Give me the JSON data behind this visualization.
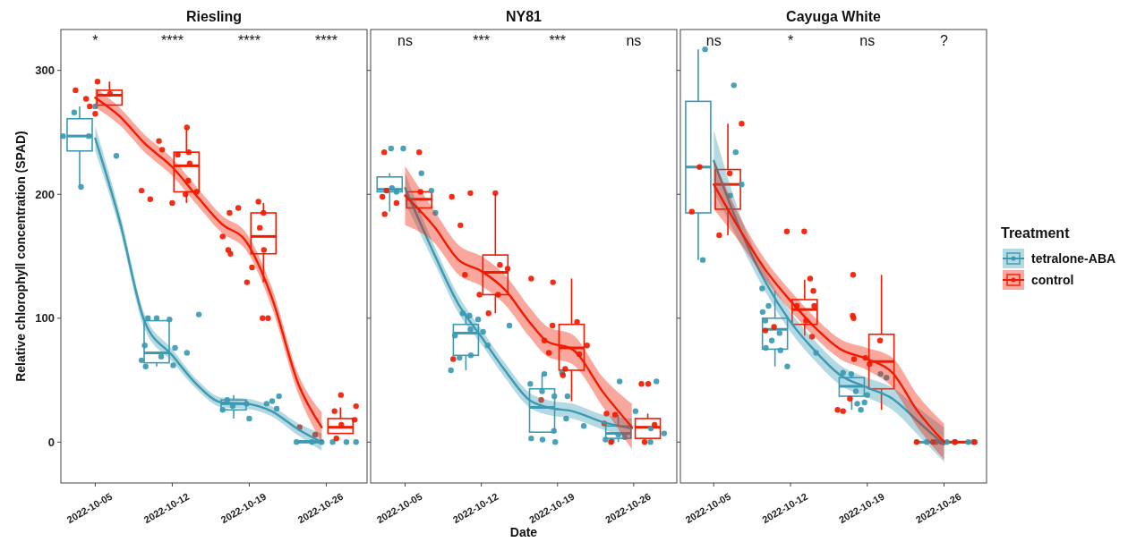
{
  "chart_data": [
    {
      "type": "box",
      "title": "Riesling",
      "ylabel": "Relative chlorophyll concentration (SPAD)",
      "xlim": [
        "2022-10-01T21:00",
        "2022-10-29T17:00"
      ],
      "ylim": [
        -33,
        333
      ],
      "yticks": [
        0,
        100,
        200,
        300
      ],
      "xticks": [
        "2022-10-05",
        "2022-10-12",
        "2022-10-19",
        "2022-10-26"
      ],
      "annotations": [
        "*",
        "****",
        "****",
        "****"
      ],
      "series": [
        {
          "color": "#3b9ab2",
          "x": [
            "2022-10-03T14:00",
            "2022-10-10T14:00",
            "2022-10-17T14:00",
            "2022-10-24T14:00"
          ],
          "boxes": [
            {
              "low": 206,
              "q1": 235,
              "median": 247,
              "q3": 261,
              "high": 271
            },
            {
              "low": 61,
              "q1": 64,
              "median": 72,
              "q3": 98,
              "high": 100
            },
            {
              "low": 19,
              "q1": 26,
              "median": 31,
              "q3": 34,
              "high": 38
            },
            {
              "low": 0,
              "q1": 0,
              "median": 0,
              "q3": 1,
              "high": 2
            }
          ]
        },
        {
          "color": "#f21a00",
          "x": [
            "2022-10-06T07:00",
            "2022-10-13T07:00",
            "2022-10-20T07:00",
            "2022-10-27T07:00"
          ],
          "boxes": [
            {
              "low": 272,
              "q1": 272,
              "median": 280,
              "q3": 284,
              "high": 291
            },
            {
              "low": 193,
              "q1": 202,
              "median": 223,
              "q3": 234,
              "high": 254
            },
            {
              "low": 129,
              "q1": 152,
              "median": 166,
              "q3": 185,
              "high": 193
            },
            {
              "low": 7,
              "q1": 7,
              "median": 12,
              "q3": 19,
              "high": 28
            }
          ]
        },
        {
          "type": "scatter",
          "color": "#3b9ab2",
          "x": [
            "2022-10-02T02:00",
            "2022-10-03T02:00",
            "2022-10-04T10:00",
            "2022-10-03T17:00",
            "2022-10-05T00:00",
            "2022-10-06T22:00",
            "2022-10-09T19:00",
            "2022-10-10T14:00",
            "2022-10-11T18:00",
            "2022-10-09T12:00",
            "2022-10-11T00:00",
            "2022-10-09T05:00",
            "2022-10-09T14:00",
            "2022-10-12T06:00",
            "2022-10-12T02:00",
            "2022-10-13T08:00",
            "2022-10-14T10:00",
            "2022-10-17T00:00",
            "2022-10-16T14:00",
            "2022-10-17T12:00",
            "2022-10-18T18:00",
            "2022-10-19T00:00",
            "2022-10-20T14:00",
            "2022-10-21T02:00",
            "2022-10-21T17:00",
            "2022-10-21T12:00",
            "2022-10-23T07:00",
            "2022-10-24T17:00",
            "2022-10-25T14:00",
            "2022-10-26T14:00",
            "2022-10-27T20:00",
            "2022-10-28T17:00"
          ],
          "values": [
            247,
            266,
            247,
            206,
            271,
            231,
            100,
            100,
            99,
            78,
            69,
            66,
            61,
            76,
            62,
            72,
            103,
            34,
            26,
            29,
            31,
            19,
            31,
            33,
            37,
            27,
            0,
            0,
            0,
            0,
            0,
            0
          ]
        },
        {
          "type": "scatter",
          "color": "#f21a00",
          "x": [
            "2022-10-03T05:00",
            "2022-10-04T04:00",
            "2022-10-04T12:00",
            "2022-10-05T00:00",
            "2022-10-05T05:00",
            "2022-10-06T08:00",
            "2022-10-10T19:00",
            "2022-10-11T02:00",
            "2022-10-09T05:00",
            "2022-10-10T00:00",
            "2022-10-12T00:00",
            "2022-10-12T12:00",
            "2022-10-13T08:00",
            "2022-10-13T12:00",
            "2022-10-13T14:00",
            "2022-10-13T11:00",
            "2022-10-14T05:00",
            "2022-10-13T05:00",
            "2022-10-17T05:00",
            "2022-10-18T00:00",
            "2022-10-16T14:00",
            "2022-10-17T02:00",
            "2022-10-17T07:00",
            "2022-10-19T20:00",
            "2022-10-20T07:00",
            "2022-10-19T23:00",
            "2022-10-20T08:00",
            "2022-10-19T06:00",
            "2022-10-18T19:00",
            "2022-10-20T05:00",
            "2022-10-20T17:00",
            "2022-10-23T14:00",
            "2022-10-25T00:00",
            "2022-10-26T18:00",
            "2022-10-27T08:00",
            "2022-10-28T17:00",
            "2022-10-28T14:00",
            "2022-10-26T22:00",
            "2022-10-27T09:00"
          ],
          "values": [
            284,
            277,
            271,
            265,
            291,
            281,
            243,
            236,
            203,
            196,
            193,
            232,
            254,
            234,
            225,
            211,
            202,
            200,
            185,
            189,
            166,
            155,
            152,
            194,
            185,
            173,
            155,
            141,
            129,
            100,
            100,
            12,
            6,
            25,
            38,
            29,
            18,
            3,
            14
          ]
        },
        {
          "type": "line",
          "color": "#3b9ab2",
          "x": [
            "2022-10-05",
            "2022-10-07T05:00",
            "2022-10-09T12:00",
            "2022-10-12",
            "2022-10-14T07:00",
            "2022-10-16T12:00",
            "2022-10-18T17:00",
            "2022-10-21",
            "2022-10-23T12:00",
            "2022-10-25T14:00"
          ],
          "values": [
            245,
            179,
            97,
            70,
            46,
            32,
            31,
            25,
            10,
            0
          ],
          "lower": [
            235,
            172,
            91,
            65,
            42,
            28,
            27,
            21,
            5,
            -7
          ],
          "upper": [
            255,
            186,
            103,
            75,
            50,
            36,
            35,
            29,
            15,
            7
          ]
        },
        {
          "type": "line",
          "color": "#f21a00",
          "x": [
            "2022-10-05",
            "2022-10-07T05:00",
            "2022-10-09T12:00",
            "2022-10-12",
            "2022-10-14T07:00",
            "2022-10-16T12:00",
            "2022-10-18T17:00",
            "2022-10-21",
            "2022-10-23T12:00",
            "2022-10-25T14:00"
          ],
          "values": [
            278,
            263,
            241,
            222,
            198,
            176,
            162,
            118,
            46,
            12
          ],
          "lower": [
            270,
            256,
            234,
            215,
            191,
            169,
            155,
            110,
            38,
            0
          ],
          "upper": [
            286,
            270,
            248,
            229,
            205,
            183,
            169,
            126,
            54,
            24
          ]
        }
      ]
    },
    {
      "type": "box",
      "title": "NY81",
      "xlabel": "Date",
      "tick_labels": "x",
      "xlim": [
        "2022-10-01T20:00",
        "2022-10-29T23:00"
      ],
      "ylim": [
        -33,
        333
      ],
      "yticks": [
        0,
        100,
        200,
        300
      ],
      "xticks": [
        "2022-10-05",
        "2022-10-12",
        "2022-10-19",
        "2022-10-26"
      ],
      "annotations": [
        "ns",
        "***",
        "***",
        "ns"
      ],
      "series": [
        {
          "color": "#3b9ab2",
          "x": [
            "2022-10-03T14:00",
            "2022-10-10T14:00",
            "2022-10-17T14:00",
            "2022-10-24T14:00"
          ],
          "boxes": [
            {
              "low": 186,
              "q1": 202,
              "median": 204,
              "q3": 214,
              "high": 217
            },
            {
              "low": 58,
              "q1": 70,
              "median": 88,
              "q3": 95,
              "high": 104
            },
            {
              "low": 8,
              "q1": 8,
              "median": 28,
              "q3": 43,
              "high": 55
            },
            {
              "low": 0,
              "q1": 3,
              "median": 7,
              "q3": 13,
              "high": 22
            }
          ]
        },
        {
          "color": "#f21a00",
          "x": [
            "2022-10-06T07:00",
            "2022-10-13T07:00",
            "2022-10-20T07:00",
            "2022-10-27T07:00"
          ],
          "boxes": [
            {
              "low": 185,
              "q1": 189,
              "median": 196,
              "q3": 202,
              "high": 203
            },
            {
              "low": 104,
              "q1": 119,
              "median": 137,
              "q3": 151,
              "high": 201
            },
            {
              "low": 33,
              "q1": 58,
              "median": 76,
              "q3": 95,
              "high": 132
            },
            {
              "low": 3,
              "q1": 3,
              "median": 12,
              "q3": 19,
              "high": 23
            }
          ]
        },
        {
          "type": "scatter",
          "color": "#3b9ab2",
          "x": [
            "2022-10-03T17:00",
            "2022-10-04T20:00",
            "2022-10-06T12:00",
            "2022-10-03T19:00",
            "2022-10-04T05:00",
            "2022-10-07T10:00",
            "2022-10-07T19:00",
            "2022-10-10T07:00",
            "2022-10-10T22:00",
            "2022-10-11T17:00",
            "2022-10-12T04:00",
            "2022-10-11T00:00",
            "2022-10-12T14:00",
            "2022-10-09T14:00",
            "2022-10-10T00:00",
            "2022-10-11T01:00",
            "2022-10-09T05:00",
            "2022-10-14T14:00",
            "2022-10-16T12:00",
            "2022-10-17T19:00",
            "2022-10-17T14:00",
            "2022-10-18T17:00",
            "2022-10-19T22:00",
            "2022-10-19T10:00",
            "2022-10-19T19:00",
            "2022-10-21T10:00",
            "2022-10-16T14:00",
            "2022-10-17T15:00",
            "2022-10-18T19:00",
            "2022-10-18T16:00",
            "2022-10-24T17:00",
            "2022-10-28T02:00",
            "2022-10-26T04:00",
            "2022-10-23T10:00",
            "2022-10-24T00:00",
            "2022-10-24T14:00",
            "2022-10-27T14:00",
            "2022-10-28T19:00",
            "2022-10-27T13:00",
            "2022-10-25T04:00"
          ],
          "values": [
            237,
            237,
            217,
            205,
            202,
            203,
            185,
            104,
            102,
            99,
            89,
            91,
            78,
            86,
            68,
            70,
            58,
            94,
            47,
            55,
            41,
            37,
            37,
            56,
            19,
            13,
            3,
            2,
            0,
            9,
            49,
            49,
            25,
            2,
            1,
            6,
            11,
            7,
            0,
            4
          ]
        },
        {
          "type": "scatter",
          "color": "#f21a00",
          "x": [
            "2022-10-03T02:00",
            "2022-10-06T07:00",
            "2022-10-03T07:00",
            "2022-10-02T22:00",
            "2022-10-04T05:00",
            "2022-10-03T03:00",
            "2022-10-06T10:00",
            "2022-10-09T07:00",
            "2022-10-11T00:00",
            "2022-10-13T07:00",
            "2022-10-10T02:00",
            "2022-10-10T12:00",
            "2022-10-13T17:00",
            "2022-10-14T10:00",
            "2022-10-11T20:00",
            "2022-10-13T13:00",
            "2022-10-12T16:00",
            "2022-10-09T10:00",
            "2022-10-16T14:00",
            "2022-10-18T14:00",
            "2022-10-18T13:00",
            "2022-10-20T19:00",
            "2022-10-21T17:00",
            "2022-10-17T19:00",
            "2022-10-18T05:00",
            "2022-10-21T00:00",
            "2022-10-19T17:00",
            "2022-10-19T12:00",
            "2022-10-17T12:00",
            "2022-10-26T17:00",
            "2022-10-27T08:00",
            "2022-10-23T12:00",
            "2022-10-24T07:00",
            "2022-10-23T07:00",
            "2022-10-23T22:00",
            "2022-10-27T22:00",
            "2022-10-27T00:00"
          ],
          "values": [
            234,
            234,
            203,
            198,
            193,
            184,
            202,
            198,
            201,
            201,
            175,
            135,
            143,
            140,
            119,
            119,
            104,
            67,
            132,
            129,
            94,
            97,
            78,
            82,
            72,
            71,
            59,
            54,
            34,
            47,
            47,
            23,
            22,
            15,
            0,
            14,
            0
          ]
        },
        {
          "type": "line",
          "color": "#3b9ab2",
          "x": [
            "2022-10-05",
            "2022-10-07T16:00",
            "2022-10-09T22:00",
            "2022-10-12",
            "2022-10-14T04:00",
            "2022-10-16T10:00",
            "2022-10-18T02:00",
            "2022-10-20T08:00",
            "2022-10-23T05:00",
            "2022-10-25T20:00"
          ],
          "values": [
            205,
            152,
            111,
            85,
            58,
            34,
            28,
            25,
            16,
            11
          ],
          "lower": [
            193,
            145,
            104,
            79,
            52,
            28,
            22,
            19,
            10,
            3
          ],
          "upper": [
            217,
            159,
            118,
            91,
            64,
            40,
            34,
            31,
            22,
            19
          ]
        },
        {
          "type": "line",
          "color": "#f21a00",
          "x": [
            "2022-10-05",
            "2022-10-07T16:00",
            "2022-10-09T22:00",
            "2022-10-12",
            "2022-10-14T04:00",
            "2022-10-16T10:00",
            "2022-10-18T02:00",
            "2022-10-20T08:00",
            "2022-10-23T05:00",
            "2022-10-25T20:00"
          ],
          "values": [
            199,
            174,
            147,
            138,
            123,
            97,
            81,
            75,
            40,
            12
          ],
          "lower": [
            175,
            161,
            135,
            126,
            111,
            85,
            69,
            63,
            28,
            -6
          ],
          "upper": [
            223,
            187,
            159,
            150,
            135,
            109,
            93,
            87,
            52,
            31
          ]
        }
      ]
    },
    {
      "type": "box",
      "title": "Cayuga White",
      "tick_labels": "x",
      "legend": "right",
      "legend_title": "Treatment",
      "xlim": [
        "2022-10-01T23:00",
        "2022-10-29T21:00"
      ],
      "ylim": [
        -33,
        333
      ],
      "yticks": [
        0,
        100,
        200,
        300
      ],
      "xticks": [
        "2022-10-05",
        "2022-10-12",
        "2022-10-19",
        "2022-10-26"
      ],
      "annotations": [
        "ns",
        "*",
        "ns",
        "?"
      ],
      "series": [
        {
          "name": "tetralone-ABA",
          "color": "#3b9ab2",
          "x": [
            "2022-10-03T14:00",
            "2022-10-10T14:00",
            "2022-10-17T14:00",
            "2022-10-24T14:00"
          ],
          "boxes": [
            {
              "low": 147,
              "q1": 185,
              "median": 222,
              "q3": 275,
              "high": 317
            },
            {
              "low": 61,
              "q1": 75,
              "median": 91,
              "q3": 100,
              "high": 122
            },
            {
              "low": 26,
              "q1": 37,
              "median": 45,
              "q3": 52,
              "high": 56
            },
            {
              "low": 0,
              "q1": 0,
              "median": 0,
              "q3": 0,
              "high": 0
            }
          ]
        },
        {
          "name": "control",
          "color": "#f21a00",
          "x": [
            "2022-10-06T07:00",
            "2022-10-13T07:00",
            "2022-10-20T07:00",
            "2022-10-27T07:00"
          ],
          "boxes": [
            {
              "low": 167,
              "q1": 188,
              "median": 208,
              "q3": 220,
              "high": 257
            },
            {
              "low": 86,
              "q1": 95,
              "median": 107,
              "q3": 115,
              "high": 131
            },
            {
              "low": 26,
              "q1": 43,
              "median": 65,
              "q3": 87,
              "high": 135
            },
            {
              "low": 0,
              "q1": 0,
              "median": 0,
              "q3": 0,
              "high": 0
            }
          ]
        },
        {
          "type": "scatter",
          "color": "#3b9ab2",
          "x": [
            "2022-10-04T05:00",
            "2022-10-06T20:00",
            "2022-10-07T00:00",
            "2022-10-07T13:00",
            "2022-10-04T00:00",
            "2022-10-06T12:00",
            "2022-10-09T10:00",
            "2022-10-09T11:00",
            "2022-10-10T00:00",
            "2022-10-09T17:00",
            "2022-10-11T00:00",
            "2022-10-10T07:00",
            "2022-10-09T18:00",
            "2022-10-11T02:00",
            "2022-10-11T17:00",
            "2022-10-14T08:00",
            "2022-10-16T19:00",
            "2022-10-17T13:00",
            "2022-10-17T23:00",
            "2022-10-19T00:00",
            "2022-10-18T18:00",
            "2022-10-18T02:00",
            "2022-10-18T10:00",
            "2022-10-20T05:00",
            "2022-10-20T18:00",
            "2022-10-24T10:00",
            "2022-10-25T07:00",
            "2022-10-26T06:00",
            "2022-10-26T23:00",
            "2022-10-28T05:00",
            "2022-10-28T16:00"
          ],
          "values": [
            317,
            288,
            234,
            208,
            147,
            199,
            124,
            105,
            110,
            98,
            88,
            82,
            76,
            74,
            61,
            72,
            56,
            55,
            41,
            38,
            32,
            31,
            26,
            55,
            52,
            0,
            0,
            0,
            0,
            0,
            0
          ]
        },
        {
          "type": "scatter",
          "color": "#f21a00",
          "x": [
            "2022-10-07T13:00",
            "2022-10-03T17:00",
            "2022-10-06T11:00",
            "2022-10-03T00:00",
            "2022-10-05T12:00",
            "2022-10-11T16:00",
            "2022-10-13T06:00",
            "2022-10-13T19:00",
            "2022-10-14T02:00",
            "2022-10-12T14:00",
            "2022-10-14T04:00",
            "2022-10-13T10:00",
            "2022-10-09T17:00",
            "2022-10-10T12:00",
            "2022-10-13T23:00",
            "2022-10-17T17:00",
            "2022-10-17T16:00",
            "2022-10-17T18:00",
            "2022-10-17T19:00",
            "2022-10-18T20:00",
            "2022-10-20T04:00",
            "2022-10-19T05:00",
            "2022-10-16T07:00",
            "2022-10-16T19:00",
            "2022-10-17T10:00",
            "2022-10-23T12:00",
            "2022-10-25T00:00",
            "2022-10-25T20:00",
            "2022-10-27T00:00",
            "2022-10-28T19:00"
          ],
          "values": [
            257,
            222,
            217,
            186,
            167,
            170,
            170,
            132,
            122,
            110,
            110,
            98,
            90,
            93,
            85,
            135,
            102,
            100,
            67,
            68,
            82,
            63,
            26,
            25,
            35,
            0,
            0,
            0,
            0,
            0
          ]
        },
        {
          "type": "line",
          "color": "#3b9ab2",
          "x": [
            "2022-10-05",
            "2022-10-07T13:00",
            "2022-10-09T19:00",
            "2022-10-12",
            "2022-10-14T07:00",
            "2022-10-16T13:00",
            "2022-10-19",
            "2022-10-21T07:00",
            "2022-10-23T14:00",
            "2022-10-26"
          ],
          "values": [
            227,
            169,
            128,
            97,
            73,
            54,
            44,
            35,
            17,
            -2
          ],
          "lower": [
            202,
            158,
            120,
            89,
            65,
            46,
            36,
            26,
            6,
            -16
          ],
          "upper": [
            252,
            180,
            136,
            105,
            81,
            62,
            52,
            44,
            28,
            12
          ]
        },
        {
          "type": "line",
          "color": "#f21a00",
          "x": [
            "2022-10-05",
            "2022-10-07T13:00",
            "2022-10-09T19:00",
            "2022-10-12",
            "2022-10-14T07:00",
            "2022-10-16T13:00",
            "2022-10-19",
            "2022-10-21T07:00",
            "2022-10-23T14:00",
            "2022-10-26"
          ],
          "values": [
            208,
            169,
            138,
            114,
            92,
            75,
            67,
            56,
            25,
            0
          ],
          "lower": [
            188,
            159,
            130,
            106,
            84,
            67,
            58,
            44,
            12,
            -14
          ],
          "upper": [
            228,
            179,
            146,
            122,
            100,
            83,
            76,
            68,
            38,
            15
          ]
        }
      ]
    }
  ]
}
